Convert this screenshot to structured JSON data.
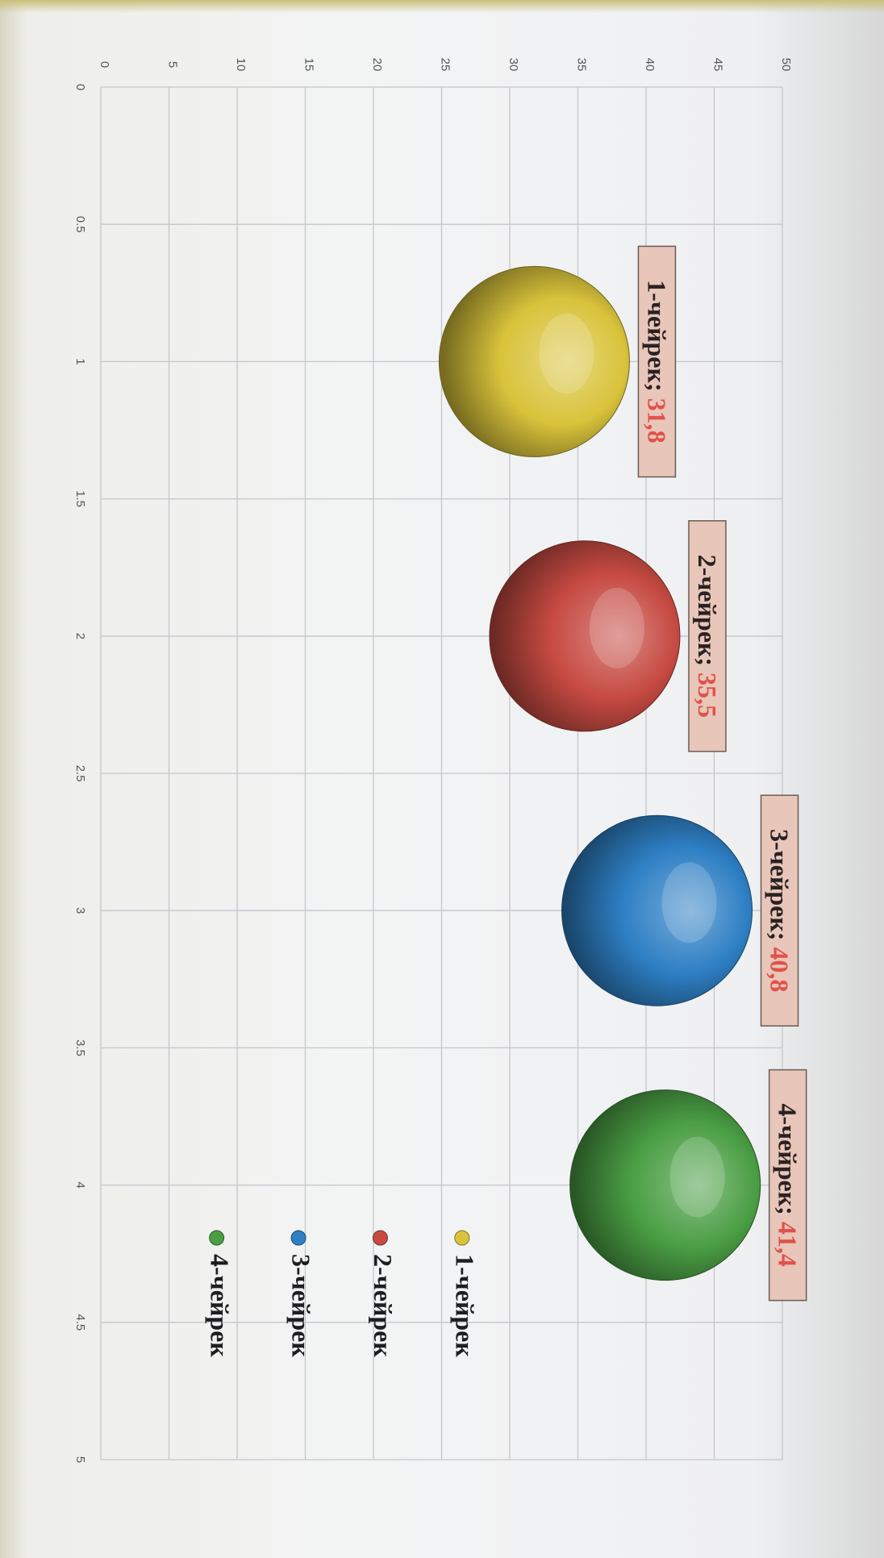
{
  "chart_data": {
    "type": "scatter",
    "title": "",
    "xlabel": "",
    "ylabel": "",
    "xlim": [
      0,
      5
    ],
    "ylim": [
      0,
      50
    ],
    "x_ticks": [
      "0",
      "0.5",
      "1",
      "1.5",
      "2",
      "2.5",
      "3",
      "3.5",
      "4",
      "4.5",
      "5"
    ],
    "y_ticks": [
      "0",
      "5",
      "10",
      "15",
      "20",
      "25",
      "30",
      "35",
      "40",
      "45",
      "50"
    ],
    "grid": true,
    "legend_position": "right",
    "series": [
      {
        "name": "1-чейрек",
        "x": 1,
        "y": 31.8,
        "label_name": "1-чейрек; ",
        "label_value": "31,8",
        "color": "#d9c33b"
      },
      {
        "name": "2-чейрек",
        "x": 2,
        "y": 35.5,
        "label_name": "2-чейрек; ",
        "label_value": "35,5",
        "color": "#c64a42"
      },
      {
        "name": "3-чейрек",
        "x": 3,
        "y": 40.8,
        "label_name": "3-чейрек; ",
        "label_value": "40,8",
        "color": "#2e7fc4"
      },
      {
        "name": "4-чейрек",
        "x": 4,
        "y": 41.4,
        "label_name": "4-чейрек; ",
        "label_value": "41,4",
        "color": "#4a9e44"
      }
    ]
  }
}
